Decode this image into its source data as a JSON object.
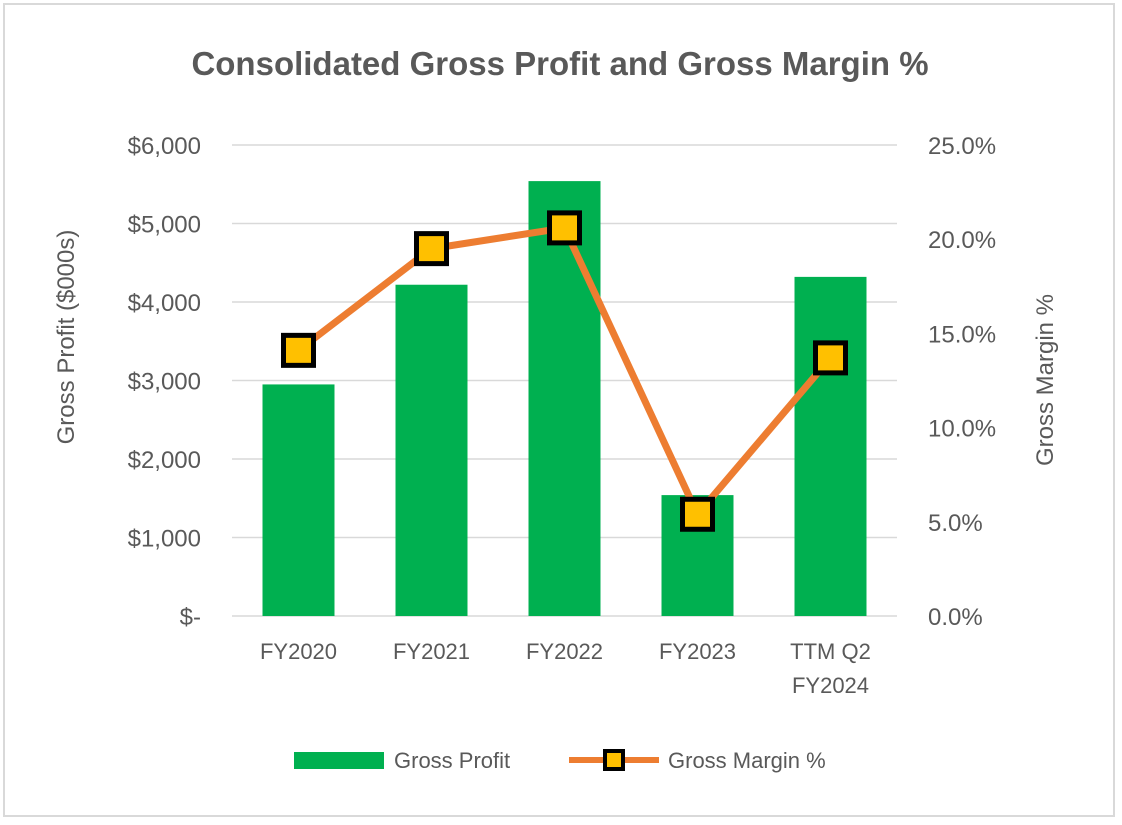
{
  "chart_data": {
    "type": "bar",
    "title": "Consolidated Gross Profit and Gross Margin %",
    "categories": [
      "FY2020",
      "FY2021",
      "FY2022",
      "FY2023",
      "TTM Q2 FY2024"
    ],
    "category_lines": [
      [
        "FY2020"
      ],
      [
        "FY2021"
      ],
      [
        "FY2022"
      ],
      [
        "FY2023"
      ],
      [
        "TTM Q2",
        "FY2024"
      ]
    ],
    "ylabel": "Gross Profit ($000s)",
    "y2label": "Gross Margin %",
    "ylim": [
      0,
      6000
    ],
    "y2lim": [
      0,
      25
    ],
    "y_ticks": [
      0,
      1000,
      2000,
      3000,
      4000,
      5000,
      6000
    ],
    "y_tick_labels": [
      "$-",
      "$1,000",
      "$2,000",
      "$3,000",
      "$4,000",
      "$5,000",
      "$6,000"
    ],
    "y2_ticks": [
      0,
      5,
      10,
      15,
      20,
      25
    ],
    "y2_tick_labels": [
      "0.0%",
      "5.0%",
      "10.0%",
      "15.0%",
      "20.0%",
      "25.0%"
    ],
    "grid": true,
    "legend_position": "bottom",
    "series": [
      {
        "name": "Gross Profit",
        "type": "bar",
        "axis": "left",
        "color": "#00b050",
        "values": [
          2950,
          4220,
          5540,
          1540,
          4320
        ]
      },
      {
        "name": "Gross Margin %",
        "type": "line",
        "axis": "right",
        "color": "#ed7d31",
        "marker_color": "#ffc000",
        "values": [
          14.1,
          19.5,
          20.6,
          5.4,
          13.7
        ]
      }
    ]
  }
}
